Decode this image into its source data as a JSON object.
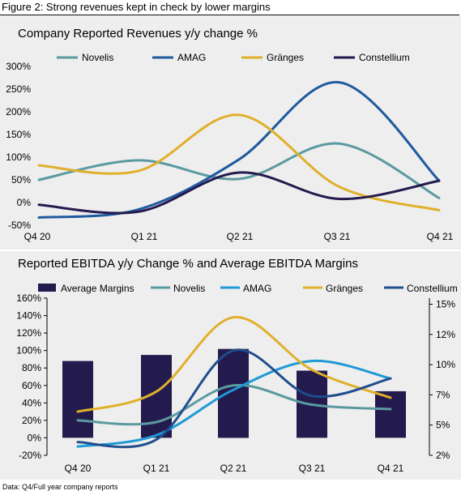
{
  "figure_title": "Figure 2: Strong revenues kept in check by lower margins",
  "source": "Data: Q4/Full year company reports",
  "chart_data": [
    {
      "type": "line",
      "title": "Company Reported Revenues y/y change %",
      "categories": [
        "Q4 20",
        "Q1 21",
        "Q2 21",
        "Q3 21",
        "Q4 21"
      ],
      "ylim": [
        -50,
        300
      ],
      "yticks": [
        -50,
        0,
        50,
        100,
        150,
        200,
        250,
        300
      ],
      "ytick_labels": [
        "-50%",
        "0%",
        "50%",
        "100%",
        "150%",
        "200%",
        "250%",
        "300%"
      ],
      "legend_position": "top",
      "grid": false,
      "series": [
        {
          "name": "Novelis",
          "color": "#5b9aa0",
          "values": [
            50,
            93,
            52,
            130,
            10
          ]
        },
        {
          "name": "AMAG",
          "color": "#1f5a9e",
          "values": [
            -33,
            -15,
            95,
            265,
            48
          ]
        },
        {
          "name": "Gränges",
          "color": "#e0b02b",
          "values": [
            82,
            70,
            193,
            35,
            -17
          ]
        },
        {
          "name": "Constellium",
          "color": "#241a4f",
          "values": [
            -5,
            -20,
            66,
            8,
            48
          ]
        }
      ]
    },
    {
      "type": "bar",
      "title": "Reported EBITDA y/y Change % and Average EBITDA Margins",
      "categories": [
        "Q4 20",
        "Q1 21",
        "Q2 21",
        "Q3 21",
        "Q4 21"
      ],
      "ylim": [
        -20,
        160
      ],
      "yticks": [
        -20,
        0,
        20,
        40,
        60,
        80,
        100,
        120,
        140,
        160
      ],
      "ytick_labels": [
        "-20%",
        "0%",
        "20%",
        "40%",
        "60%",
        "80%",
        "100%",
        "120%",
        "140%",
        "160%"
      ],
      "y2lim": [
        2.5,
        15.5
      ],
      "y2ticks": [
        2.5,
        5,
        7.5,
        10,
        12.5,
        15
      ],
      "y2tick_labels": [
        "2%",
        "5%",
        "7%",
        "10%",
        "12%",
        "15%"
      ],
      "legend_position": "top",
      "grid": false,
      "bars": {
        "name": "Average Margins",
        "color": "#231b4d",
        "values": [
          10.3,
          10.8,
          11.3,
          9.5,
          7.8
        ]
      },
      "series": [
        {
          "name": "Novelis",
          "color": "#5b9aa0",
          "values": [
            20,
            18,
            60,
            38,
            33
          ]
        },
        {
          "name": "AMAG",
          "color": "#1e9ad6",
          "values": [
            -10,
            3,
            55,
            88,
            68
          ]
        },
        {
          "name": "Gränges",
          "color": "#e0b02b",
          "values": [
            30,
            53,
            138,
            78,
            46
          ]
        },
        {
          "name": "Constellium",
          "color": "#1f4e8c",
          "values": [
            -5,
            -2,
            100,
            48,
            68
          ]
        }
      ]
    }
  ]
}
